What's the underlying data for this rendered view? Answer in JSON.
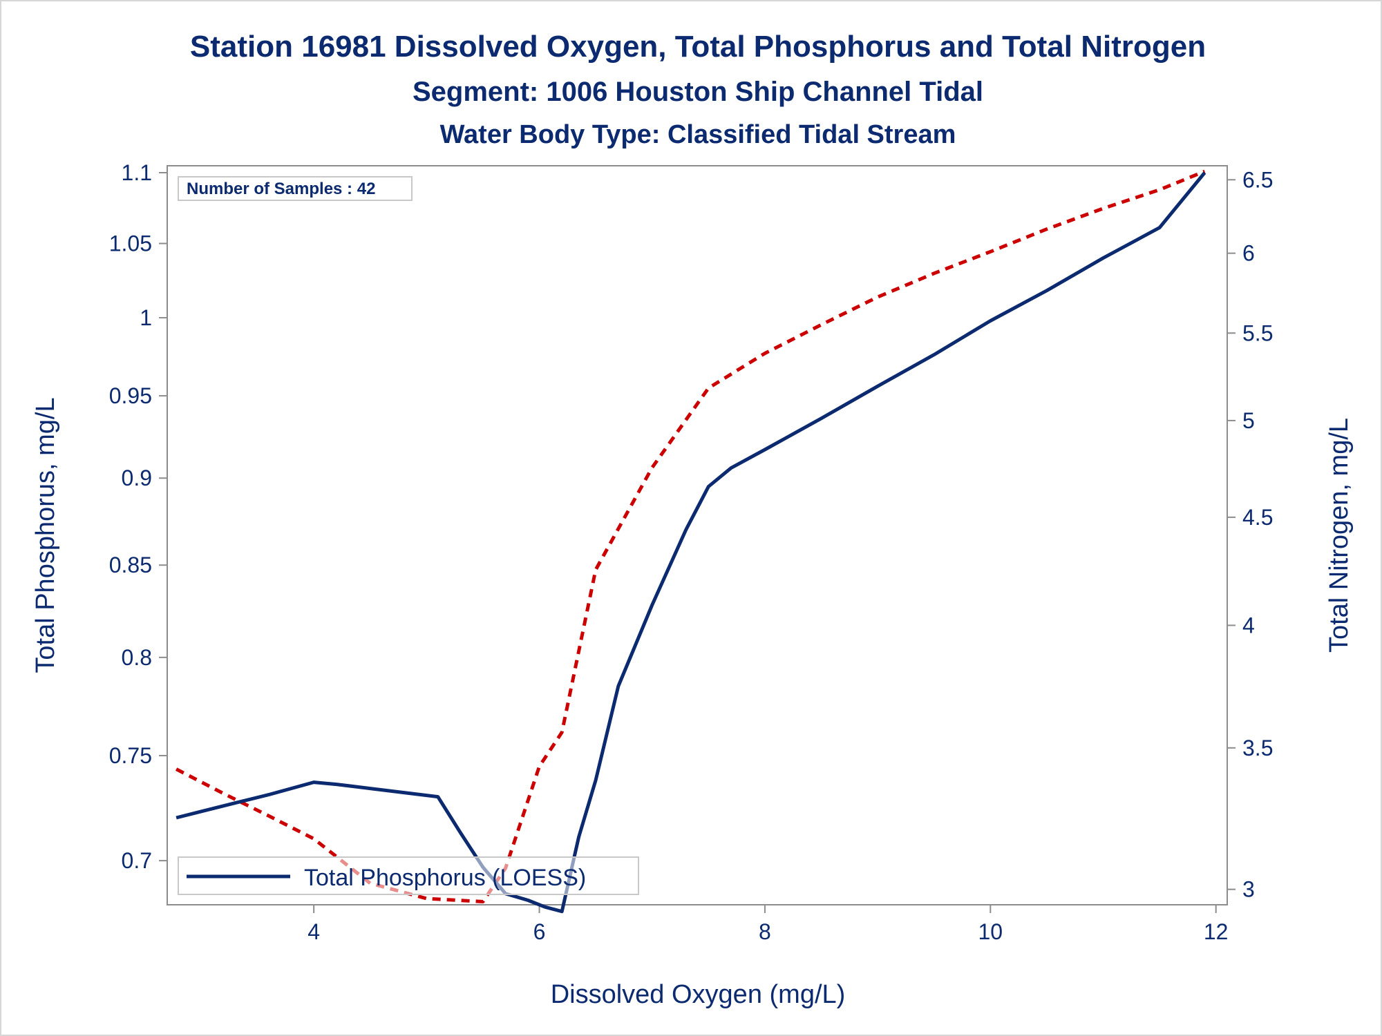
{
  "chart_data": {
    "type": "line",
    "title": "Station 16981  Dissolved Oxygen, Total Phosphorus and Total Nitrogen",
    "subtitle": "Segment: 1006  Houston Ship Channel Tidal",
    "subtitle2": "Water Body Type: Classified Tidal Stream",
    "xlabel": "Dissolved Oxygen (mg/L)",
    "ylabel": "Total Phosphorus, mg/L",
    "y2label": "Total Nitrogen, mg/L",
    "xlim": [
      2.7,
      12.1
    ],
    "ylim": [
      0.68,
      1.105
    ],
    "y2lim": [
      2.95,
      6.6
    ],
    "y_scale": "log",
    "y2_scale": "log",
    "x_ticks": [
      "4",
      "6",
      "8",
      "10",
      "12"
    ],
    "y_ticks": [
      "0.7",
      "0.75",
      "0.8",
      "0.85",
      "0.9",
      "0.95",
      "1",
      "1.05",
      "1.1"
    ],
    "y2_ticks": [
      "3",
      "3.5",
      "4",
      "4.5",
      "5",
      "5.5",
      "6",
      "6.5"
    ],
    "annotation": "Number of Samples : 42",
    "legend_position": "bottom-left",
    "grid": false,
    "series": [
      {
        "name": "Total Phosphorus (LOESS)",
        "axis": "left",
        "color": "#0b2a6f",
        "style": "solid",
        "x": [
          2.78,
          3.0,
          3.3,
          3.6,
          3.8,
          4.0,
          4.2,
          4.5,
          4.8,
          5.1,
          5.3,
          5.5,
          5.7,
          5.9,
          6.05,
          6.2,
          6.35,
          6.5,
          6.7,
          7.0,
          7.3,
          7.5,
          7.7,
          8.0,
          8.5,
          9.0,
          9.5,
          10.0,
          10.5,
          11.0,
          11.5,
          11.9
        ],
        "y": [
          0.72,
          0.723,
          0.727,
          0.731,
          0.734,
          0.737,
          0.736,
          0.734,
          0.732,
          0.73,
          0.713,
          0.697,
          0.685,
          0.682,
          0.679,
          0.677,
          0.711,
          0.738,
          0.785,
          0.828,
          0.87,
          0.895,
          0.906,
          0.917,
          0.936,
          0.956,
          0.976,
          0.998,
          1.018,
          1.04,
          1.061,
          1.1
        ]
      },
      {
        "name": "",
        "axis": "right",
        "color": "#cc0000",
        "style": "dashed",
        "x": [
          2.78,
          3.2,
          3.6,
          4.0,
          4.5,
          5.0,
          5.5,
          5.7,
          6.0,
          6.2,
          6.5,
          7.0,
          7.5,
          8.0,
          8.5,
          9.0,
          9.5,
          10.0,
          10.5,
          11.0,
          11.5,
          11.9
        ],
        "y": [
          3.42,
          3.33,
          3.25,
          3.17,
          3.02,
          2.97,
          2.96,
          3.07,
          3.43,
          3.56,
          4.25,
          4.75,
          5.18,
          5.38,
          5.55,
          5.72,
          5.87,
          6.01,
          6.16,
          6.3,
          6.43,
          6.56
        ]
      }
    ]
  }
}
